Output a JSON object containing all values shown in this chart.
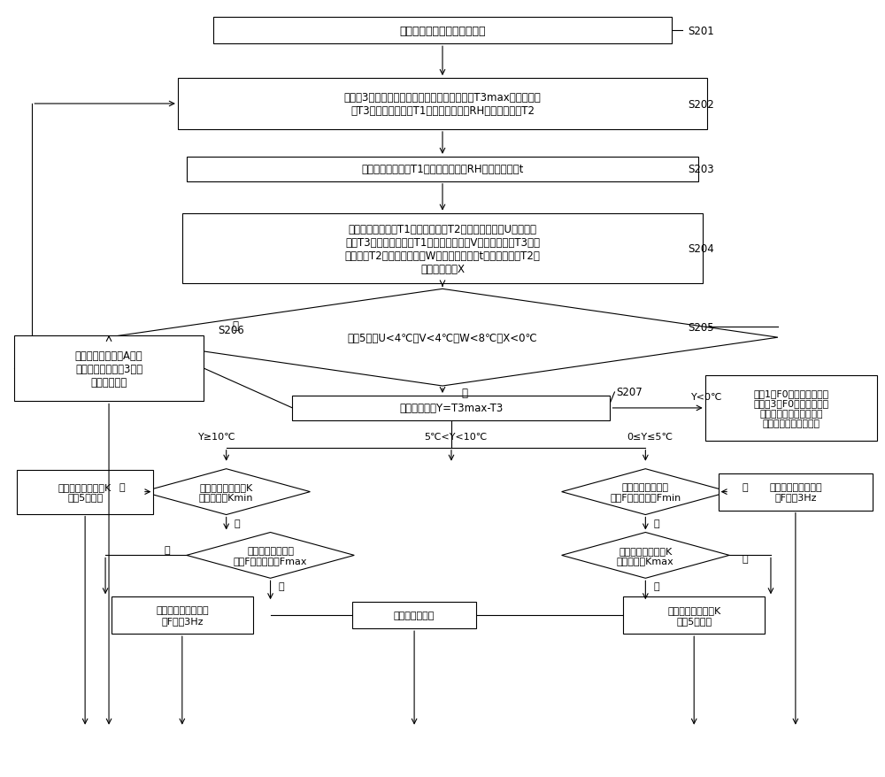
{
  "bg_color": "#ffffff",
  "s201_text": "除湿机开机，以干物模式运行",
  "s202_text": "在运行3分钟之后，检测预设冷凝器温度最大值T3max、冷凝器温\n度T3、进风干球温度T1、进风相对湿度RH和蒸发器温度T2",
  "s203_text": "根据进风干球温度T1和进风相对湿度RH计算露点温度t",
  "s204_text": "获取进风干球温度T1与蒸发器温度T2之间的第二差值U、冷凝器\n温度T3与进风干球温度T1之间的第三差值V、冷凝器温度T3与蒸\n发器温度T2之间的第四差值W、以及露点温度t与蒸发器温度T2之\n间的第五差值X",
  "s205_text": "连续5秒：U<4℃、V<4℃、W<8℃、X<0℃",
  "s206_text": "累计一次异常状态A，并\n重新检测，若连续3次，\n则停机保故障",
  "s207_text": "获取第一差值Y=T3max-T3",
  "rfault_text": "记录1次F0，并重新检测，\n若连续3次F0，则停机保故\n障；当压缩机满足延时保\n护时间后，则压缩机开",
  "dia_left1_text": "检测膨胀阀的开度K\n是否为最小Kmin",
  "dia_left2_text": "检测压缩机的运行\n频率F是否为最大Fmax",
  "dia_right1_text": "检测压缩机的运行\n频率F是否为最小Fmin",
  "dia_right2_text": "检测膨胀阀的开度K\n是否为最大Kmax",
  "box_lno_text": "控制膨胀阀的开度K\n减小5个开度",
  "box_l2no_text": "控制压缩机的运行频\n率F上升3Hz",
  "box_keep_text": "保持此状态不变",
  "box_mno_text": "控制压缩机的运行频\n率F下降3Hz",
  "box_m2no_text": "控制膨胀阀的开度K\n增大5个开度"
}
